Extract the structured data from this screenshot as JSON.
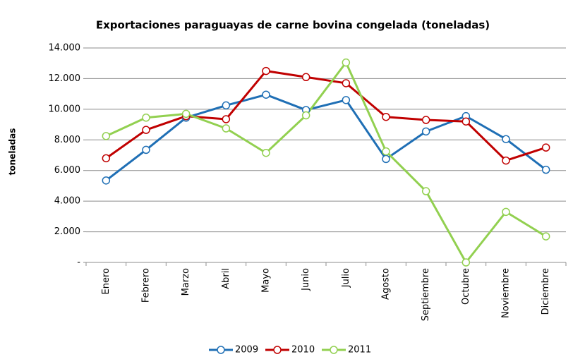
{
  "chart_data": {
    "type": "line",
    "title": "Exportaciones paraguayas de carne bovina congelada (toneladas)",
    "y_label": "toneladas",
    "categories": [
      "Enero",
      "Febrero",
      "Marzo",
      "Abril",
      "Mayo",
      "Junio",
      "Julio",
      "Agosto",
      "Septiembre",
      "Octubre",
      "Noviembre",
      "Diciembre"
    ],
    "series": [
      {
        "name": "2009",
        "color": "#1f6fb5",
        "values": [
          5350,
          7350,
          9450,
          10250,
          10950,
          9950,
          10600,
          6750,
          8550,
          9550,
          8050,
          6050
        ]
      },
      {
        "name": "2010",
        "color": "#c00000",
        "values": [
          6800,
          8650,
          9550,
          9350,
          12500,
          12100,
          11700,
          9500,
          9300,
          9200,
          6650,
          7500
        ]
      },
      {
        "name": "2011",
        "color": "#92d050",
        "values": [
          8250,
          9450,
          9700,
          8750,
          7150,
          9600,
          13050,
          7250,
          4650,
          0,
          3300,
          1700
        ]
      }
    ],
    "ylim": [
      0,
      14000
    ],
    "yticks": [
      {
        "value": 0,
        "label": "-"
      },
      {
        "value": 2000,
        "label": "2.000"
      },
      {
        "value": 4000,
        "label": "4.000"
      },
      {
        "value": 6000,
        "label": "6.000"
      },
      {
        "value": 8000,
        "label": "8.000"
      },
      {
        "value": 10000,
        "label": "10.000"
      },
      {
        "value": 12000,
        "label": "12.000"
      },
      {
        "value": 14000,
        "label": "14.000"
      }
    ],
    "grid": true,
    "legend": "bottom"
  }
}
